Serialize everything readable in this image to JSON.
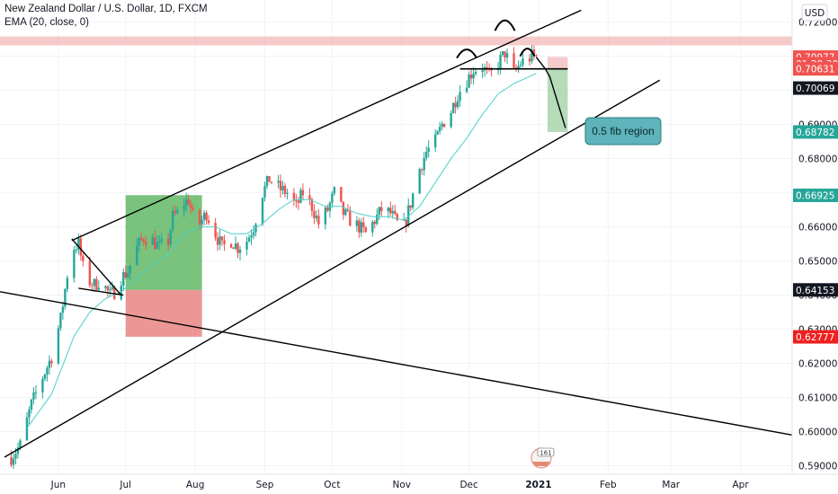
{
  "header": {
    "title": "New Zealand Dollar / U.S. Dollar, 1D, FXCM",
    "indicator": "EMA (20, close, 0)",
    "currency_button": "USD"
  },
  "colors": {
    "up": "#26a69a",
    "down": "#ef5350",
    "ema": "#4dd0c8",
    "resistance_zone": "#f2b8b8",
    "long_profit": "#4caf50",
    "long_loss": "#e57373",
    "annotation_box": "#5fb3ba",
    "text": "#131722",
    "grid": "#f0f3fa"
  },
  "annotation": {
    "text": "0.5 fib region"
  },
  "watermark": {
    "badge": "161"
  },
  "chart_data": {
    "type": "candlestick",
    "symbol": "NZDUSD",
    "timeframe": "1D",
    "x_range": [
      "2020-05-06",
      "2021-04-24"
    ],
    "ylim": [
      0.5875,
      0.7265
    ],
    "y_ticks": [
      0.59,
      0.6,
      0.61,
      0.62,
      0.63,
      0.64,
      0.65,
      0.66,
      0.67,
      0.68,
      0.69,
      0.7,
      0.71,
      0.72
    ],
    "y_tick_labels": [
      "0.59000",
      "0.60000",
      "0.61000",
      "0.62000",
      "0.63000",
      "0.64000",
      "0.65000",
      "0.66000",
      "0.67000",
      "0.68000",
      "0.69000",
      "0.70000",
      "0.71000",
      "0.72000"
    ],
    "x_ticks": [
      {
        "date": "2020-06-01",
        "label": "Jun",
        "bold": false
      },
      {
        "date": "2020-07-01",
        "label": "Jul",
        "bold": false
      },
      {
        "date": "2020-08-01",
        "label": "Aug",
        "bold": false
      },
      {
        "date": "2020-09-01",
        "label": "Sep",
        "bold": false
      },
      {
        "date": "2020-10-01",
        "label": "Oct",
        "bold": false
      },
      {
        "date": "2020-11-01",
        "label": "Nov",
        "bold": false
      },
      {
        "date": "2020-12-01",
        "label": "Dec",
        "bold": false
      },
      {
        "date": "2021-01-01",
        "label": "2021",
        "bold": true
      },
      {
        "date": "2021-02-01",
        "label": "Feb",
        "bold": false
      },
      {
        "date": "2021-03-01",
        "label": "Mar",
        "bold": false
      },
      {
        "date": "2021-04-01",
        "label": "Apr",
        "bold": false
      }
    ],
    "price_series": {
      "name": "NZDUSD close",
      "points": [
        [
          "2020-05-11",
          0.5925
        ],
        [
          "2020-05-15",
          0.596
        ],
        [
          "2020-05-20",
          0.608
        ],
        [
          "2020-05-25",
          0.616
        ],
        [
          "2020-05-29",
          0.622
        ],
        [
          "2020-06-02",
          0.633
        ],
        [
          "2020-06-05",
          0.646
        ],
        [
          "2020-06-08",
          0.654
        ],
        [
          "2020-06-10",
          0.655
        ],
        [
          "2020-06-12",
          0.648
        ],
        [
          "2020-06-15",
          0.644
        ],
        [
          "2020-06-17",
          0.643
        ],
        [
          "2020-06-19",
          0.644
        ],
        [
          "2020-06-22",
          0.642
        ],
        [
          "2020-06-24",
          0.64
        ],
        [
          "2020-06-26",
          0.641
        ],
        [
          "2020-06-29",
          0.645
        ],
        [
          "2020-07-02",
          0.647
        ],
        [
          "2020-07-06",
          0.654
        ],
        [
          "2020-07-09",
          0.657
        ],
        [
          "2020-07-13",
          0.656
        ],
        [
          "2020-07-16",
          0.654
        ],
        [
          "2020-07-20",
          0.656
        ],
        [
          "2020-07-22",
          0.663
        ],
        [
          "2020-07-24",
          0.664
        ],
        [
          "2020-07-27",
          0.667
        ],
        [
          "2020-07-29",
          0.668
        ],
        [
          "2020-07-31",
          0.663
        ],
        [
          "2020-08-03",
          0.661
        ],
        [
          "2020-08-06",
          0.664
        ],
        [
          "2020-08-10",
          0.658
        ],
        [
          "2020-08-13",
          0.654
        ],
        [
          "2020-08-17",
          0.656
        ],
        [
          "2020-08-20",
          0.654
        ],
        [
          "2020-08-24",
          0.656
        ],
        [
          "2020-08-27",
          0.66
        ],
        [
          "2020-08-31",
          0.67
        ],
        [
          "2020-09-03",
          0.674
        ],
        [
          "2020-09-08",
          0.671
        ],
        [
          "2020-09-11",
          0.67
        ],
        [
          "2020-09-15",
          0.666
        ],
        [
          "2020-09-18",
          0.67
        ],
        [
          "2020-09-22",
          0.666
        ],
        [
          "2020-09-25",
          0.661
        ],
        [
          "2020-09-29",
          0.665
        ],
        [
          "2020-10-02",
          0.67
        ],
        [
          "2020-10-06",
          0.664
        ],
        [
          "2020-10-09",
          0.662
        ],
        [
          "2020-10-13",
          0.66
        ],
        [
          "2020-10-16",
          0.658
        ],
        [
          "2020-10-20",
          0.662
        ],
        [
          "2020-10-23",
          0.665
        ],
        [
          "2020-10-27",
          0.664
        ],
        [
          "2020-10-30",
          0.661
        ],
        [
          "2020-11-02",
          0.66
        ],
        [
          "2020-11-05",
          0.667
        ],
        [
          "2020-11-09",
          0.677
        ],
        [
          "2020-11-12",
          0.682
        ],
        [
          "2020-11-16",
          0.685
        ],
        [
          "2020-11-19",
          0.69
        ],
        [
          "2020-11-23",
          0.694
        ],
        [
          "2020-11-26",
          0.699
        ],
        [
          "2020-11-30",
          0.703
        ],
        [
          "2020-12-03",
          0.706
        ],
        [
          "2020-12-07",
          0.707
        ],
        [
          "2020-12-10",
          0.704
        ],
        [
          "2020-12-14",
          0.708
        ],
        [
          "2020-12-17",
          0.711
        ],
        [
          "2020-12-21",
          0.705
        ],
        [
          "2020-12-24",
          0.708
        ],
        [
          "2020-12-29",
          0.71
        ],
        [
          "2020-12-31",
          0.7097
        ]
      ]
    },
    "ema_series": {
      "name": "EMA (20, close, 0)",
      "points": [
        [
          "2020-05-18",
          0.601
        ],
        [
          "2020-05-29",
          0.611
        ],
        [
          "2020-06-08",
          0.628
        ],
        [
          "2020-06-15",
          0.635
        ],
        [
          "2020-06-22",
          0.639
        ],
        [
          "2020-06-29",
          0.641
        ],
        [
          "2020-07-06",
          0.645
        ],
        [
          "2020-07-13",
          0.649
        ],
        [
          "2020-07-20",
          0.652
        ],
        [
          "2020-07-27",
          0.658
        ],
        [
          "2020-08-03",
          0.66
        ],
        [
          "2020-08-10",
          0.66
        ],
        [
          "2020-08-17",
          0.658
        ],
        [
          "2020-08-24",
          0.658
        ],
        [
          "2020-08-31",
          0.661
        ],
        [
          "2020-09-07",
          0.665
        ],
        [
          "2020-09-14",
          0.668
        ],
        [
          "2020-09-21",
          0.668
        ],
        [
          "2020-09-28",
          0.666
        ],
        [
          "2020-10-05",
          0.666
        ],
        [
          "2020-10-12",
          0.664
        ],
        [
          "2020-10-19",
          0.663
        ],
        [
          "2020-10-26",
          0.663
        ],
        [
          "2020-11-02",
          0.662
        ],
        [
          "2020-11-09",
          0.666
        ],
        [
          "2020-11-16",
          0.673
        ],
        [
          "2020-11-23",
          0.68
        ],
        [
          "2020-11-30",
          0.686
        ],
        [
          "2020-12-07",
          0.693
        ],
        [
          "2020-12-14",
          0.699
        ],
        [
          "2020-12-21",
          0.702
        ],
        [
          "2020-12-31",
          0.705
        ]
      ]
    },
    "price_tags": [
      {
        "value": 0.70977,
        "label": "0.70977",
        "bg": "#ef5350",
        "fg": "#ffffff"
      },
      {
        "value": 0.7078,
        "label": "01:29:30",
        "bg": "#ef5350",
        "fg": "#ffffff"
      },
      {
        "value": 0.70631,
        "label": "0.70631",
        "bg": "#ef5350",
        "fg": "#ffffff"
      },
      {
        "value": 0.70069,
        "label": "0.70069",
        "bg": "#131722",
        "fg": "#ffffff"
      },
      {
        "value": 0.68782,
        "label": "0.68782",
        "bg": "#26a69a",
        "fg": "#ffffff"
      },
      {
        "value": 0.66925,
        "label": "0.66925",
        "bg": "#26a69a",
        "fg": "#ffffff"
      },
      {
        "value": 0.64153,
        "label": "0.64153",
        "bg": "#131722",
        "fg": "#ffffff"
      },
      {
        "value": 0.62777,
        "label": "0.62777",
        "bg": "#ef2020",
        "fg": "#ffffff"
      }
    ],
    "zones": [
      {
        "name": "resistance-zone",
        "x0": "2020-05-06",
        "x1": "2021-04-24",
        "y0": 0.7132,
        "y1": 0.7158,
        "color": "#f2b8b8"
      },
      {
        "name": "long-profit-zone",
        "x0": "2020-07-01",
        "x1": "2020-08-04",
        "y0": 0.6415,
        "y1": 0.6693,
        "color": "#4caf50"
      },
      {
        "name": "long-loss-zone",
        "x0": "2020-07-01",
        "x1": "2020-08-04",
        "y0": 0.6278,
        "y1": 0.6415,
        "color": "#e57373"
      },
      {
        "name": "short-profit-zone",
        "x0": "2021-01-05",
        "x1": "2021-01-14",
        "y0": 0.6878,
        "y1": 0.7063,
        "color": "#9ccfa0"
      },
      {
        "name": "short-loss-zone",
        "x0": "2021-01-05",
        "x1": "2021-01-14",
        "y0": 0.7063,
        "y1": 0.7098,
        "color": "#f2b8b8"
      }
    ],
    "trendlines": [
      {
        "name": "upper-channel-line",
        "p1": [
          "2020-06-07",
          0.656
        ],
        "p2": [
          "2021-01-20",
          0.7235
        ]
      },
      {
        "name": "lower-channel-line",
        "p1": [
          "2020-05-08",
          0.5925
        ],
        "p2": [
          "2021-02-24",
          0.703
        ]
      },
      {
        "name": "descending-line",
        "p1": [
          "2020-05-06",
          0.641
        ],
        "p2": [
          "2021-04-24",
          0.599
        ]
      },
      {
        "name": "wedge-top-line",
        "p1": [
          "2020-06-07",
          0.6565
        ],
        "p2": [
          "2020-06-29",
          0.64
        ]
      },
      {
        "name": "wedge-bottom-line",
        "p1": [
          "2020-06-10",
          0.642
        ],
        "p2": [
          "2020-06-30",
          0.64
        ]
      },
      {
        "name": "neckline",
        "p1": [
          "2020-11-27",
          0.7063
        ],
        "p2": [
          "2021-01-14",
          0.7063
        ]
      }
    ],
    "projection": {
      "name": "projected-path",
      "points": [
        [
          "2020-12-31",
          0.7097
        ],
        [
          "2021-01-04",
          0.7063
        ],
        [
          "2021-01-06",
          0.704
        ],
        [
          "2021-01-13",
          0.689
        ]
      ]
    },
    "annotations": [
      {
        "text": "0.5 fib region",
        "x": "2021-01-17",
        "y": 0.688
      }
    ]
  }
}
